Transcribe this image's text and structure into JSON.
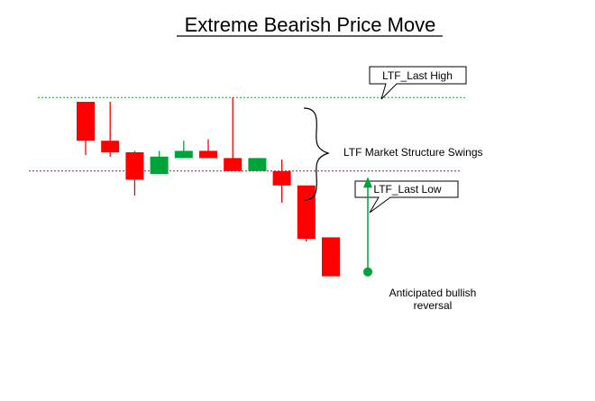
{
  "chart_data": {
    "type": "candlestick",
    "title": "Extreme Bearish Price Move",
    "colors": {
      "bullish": "#00a23a",
      "bearish": "#ff0000",
      "high_line": "#1aa32a",
      "low_line": "#e0001a",
      "arrow": "#00a23a"
    },
    "candles": [
      {
        "direction": "bearish",
        "open": 110.0,
        "high": 110.0,
        "low": 91.5,
        "close": 96.5
      },
      {
        "direction": "bearish",
        "open": 96.5,
        "high": 110.0,
        "low": 91.0,
        "close": 92.5
      },
      {
        "direction": "bearish",
        "open": 92.5,
        "high": 93.0,
        "low": 77.5,
        "close": 83.0
      },
      {
        "direction": "bullish",
        "open": 85.0,
        "high": 93.0,
        "low": 85.0,
        "close": 91.0
      },
      {
        "direction": "bullish",
        "open": 90.5,
        "high": 96.5,
        "low": 90.5,
        "close": 93.0
      },
      {
        "direction": "bearish",
        "open": 93.0,
        "high": 97.0,
        "low": 90.5,
        "close": 90.5
      },
      {
        "direction": "bearish",
        "open": 90.5,
        "high": 111.5,
        "low": 86.0,
        "close": 86.0
      },
      {
        "direction": "bullish",
        "open": 86.0,
        "high": 90.5,
        "low": 86.0,
        "close": 90.5
      },
      {
        "direction": "bearish",
        "open": 86.0,
        "high": 90.0,
        "low": 75.0,
        "close": 81.0
      },
      {
        "direction": "bearish",
        "open": 81.0,
        "high": 81.0,
        "low": 61.5,
        "close": 62.5
      },
      {
        "direction": "bearish",
        "open": 63.0,
        "high": 63.0,
        "low": 49.5,
        "close": 49.5
      }
    ],
    "levels": [
      {
        "label": "LTF_Last High",
        "value": 111.5,
        "style": "dotted",
        "color": "#1aa32a"
      },
      {
        "label": "LTF_Last Low",
        "value": 86.0,
        "style": "dotted",
        "color": "#e0001a"
      }
    ],
    "annotations": {
      "brace_label": "LTF Market Structure Swings",
      "arrow_label_line1": "Anticipated bullish",
      "arrow_label_line2": "reversal",
      "arrow_from": 51.0,
      "arrow_to": 84.0
    },
    "xlabel": "",
    "ylabel": "",
    "grid": false
  }
}
